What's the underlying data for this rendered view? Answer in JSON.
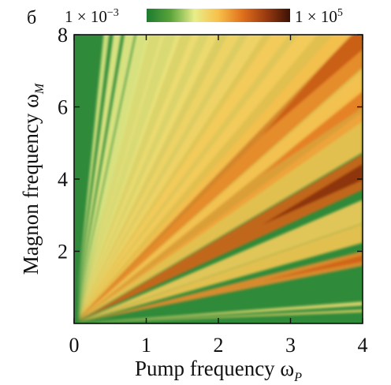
{
  "panel_label": "б",
  "colorbar": {
    "min_label": "1 × 10",
    "min_exp": "−3",
    "max_label": "1 × 10",
    "max_exp": "5",
    "colors": [
      "#1d7a30",
      "#5aa43a",
      "#e8ee8a",
      "#f7c04a",
      "#e0701c",
      "#9a3a10",
      "#3a1205"
    ]
  },
  "chart_data": {
    "type": "heatmap",
    "xlabel": "Pump frequency ω",
    "xlabel_sub": "P",
    "ylabel": "Magnon frequency ω",
    "ylabel_sub": "M",
    "xlim": [
      0,
      4
    ],
    "ylim": [
      0,
      8
    ],
    "xticks": [
      "0",
      "1",
      "2",
      "3",
      "4"
    ],
    "yticks": [
      "2",
      "4",
      "6",
      "8"
    ],
    "scale": "log",
    "value_range": [
      0.001,
      100000
    ],
    "bands": [
      {
        "y_at_x4": 0.35,
        "intensity": 0.45
      },
      {
        "y_at_x4": 0.55,
        "intensity": 0.4
      },
      {
        "y_at_x4": 1.8,
        "intensity": 0.78
      },
      {
        "y_at_x4": 2.5,
        "intensity": 0.55
      },
      {
        "y_at_x4": 3.1,
        "intensity": 0.5
      },
      {
        "y_at_x4": 4.2,
        "intensity": 0.95
      },
      {
        "y_at_x4": 5.3,
        "intensity": 0.55
      },
      {
        "y_at_x4": 6.3,
        "intensity": 0.7
      },
      {
        "y_at_x4": 7.2,
        "intensity": 0.55
      },
      {
        "y_at_x4": 8.0,
        "intensity": 0.8
      },
      {
        "y_at_x4": 9.3,
        "intensity": 0.55
      },
      {
        "y_at_x4": 10.6,
        "intensity": 0.5
      },
      {
        "y_at_x4": 12.0,
        "intensity": 0.5
      },
      {
        "y_at_x4": 13.6,
        "intensity": 0.45
      },
      {
        "y_at_x4": 15.5,
        "intensity": 0.45
      },
      {
        "y_at_x4": 17.8,
        "intensity": 0.4
      },
      {
        "y_at_x4": 20.5,
        "intensity": 0.4
      },
      {
        "y_at_x4": 24.0,
        "intensity": 0.35
      },
      {
        "y_at_x4": 28.5,
        "intensity": 0.35
      },
      {
        "y_at_x4": 34.0,
        "intensity": 0.3
      },
      {
        "y_at_x4": 42.0,
        "intensity": 0.3
      },
      {
        "y_at_x4": 54.0,
        "intensity": 0.3
      },
      {
        "y_at_x4": 72.0,
        "intensity": 0.25
      }
    ]
  }
}
